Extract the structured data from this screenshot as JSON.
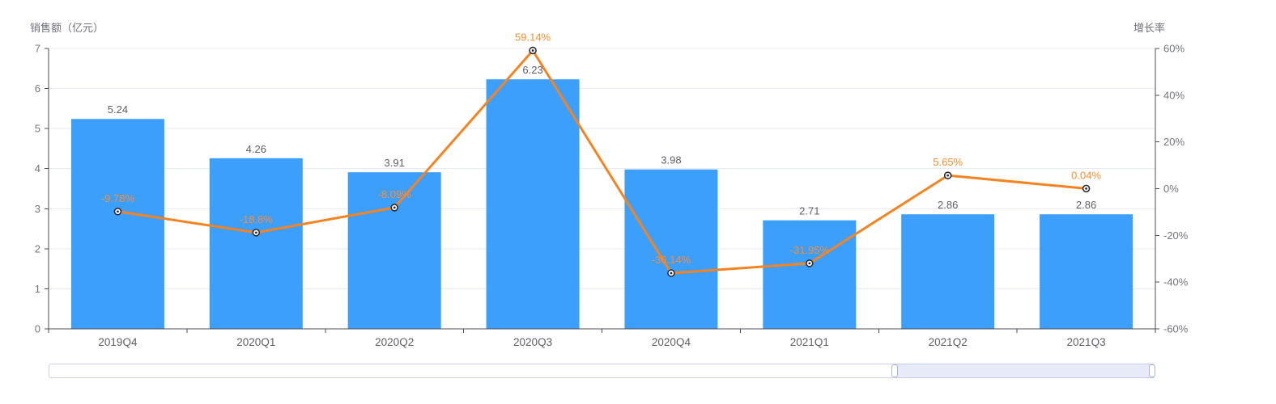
{
  "chart": {
    "left_axis_title": "销售额（亿元）",
    "right_axis_title": "增长率",
    "colors": {
      "bar": "#3d9ffc",
      "line": "#f5831f",
      "line_label": "#fb8b2f",
      "bar_label": "#5d6066",
      "axis_label": "#72757d",
      "axis_line": "#4a4d54",
      "grid_line": "#e6eaf2"
    }
  },
  "chart_data": {
    "type": "bar-line-combo",
    "title": "",
    "categories": [
      "2019Q4",
      "2020Q1",
      "2020Q2",
      "2020Q3",
      "2020Q4",
      "2021Q1",
      "2021Q2",
      "2021Q3"
    ],
    "series": [
      {
        "name": "销售额（亿元）",
        "type": "bar",
        "yaxis": "left",
        "values": [
          5.24,
          4.26,
          3.91,
          6.23,
          3.98,
          2.71,
          2.86,
          2.86
        ],
        "labels": [
          "5.24",
          "4.26",
          "3.91",
          "6.23",
          "3.98",
          "2.71",
          "2.86",
          "2.86"
        ],
        "color": "#3d9ffc"
      },
      {
        "name": "增长率",
        "type": "line",
        "yaxis": "right",
        "values": [
          -9.78,
          -18.8,
          -8.09,
          59.14,
          -36.14,
          -31.95,
          5.65,
          0.04
        ],
        "labels": [
          "-9.78%",
          "-18.8%",
          "-8.09%",
          "59.14%",
          "-36.14%",
          "-31.95%",
          "5.65%",
          "0.04%"
        ],
        "color": "#f5831f"
      }
    ],
    "left_axis": {
      "min": 0,
      "max": 7,
      "step": 1,
      "tick_labels": [
        "0",
        "1",
        "2",
        "3",
        "4",
        "5",
        "6",
        "7"
      ]
    },
    "right_axis": {
      "min": -60,
      "max": 60,
      "step": 20,
      "tick_labels": [
        "-60%",
        "-40%",
        "-20%",
        "0%",
        "20%",
        "40%",
        "60%"
      ]
    },
    "grid": true,
    "legend_position": "none"
  },
  "datazoom": {
    "start_percent": 76.5,
    "end_percent": 100
  }
}
